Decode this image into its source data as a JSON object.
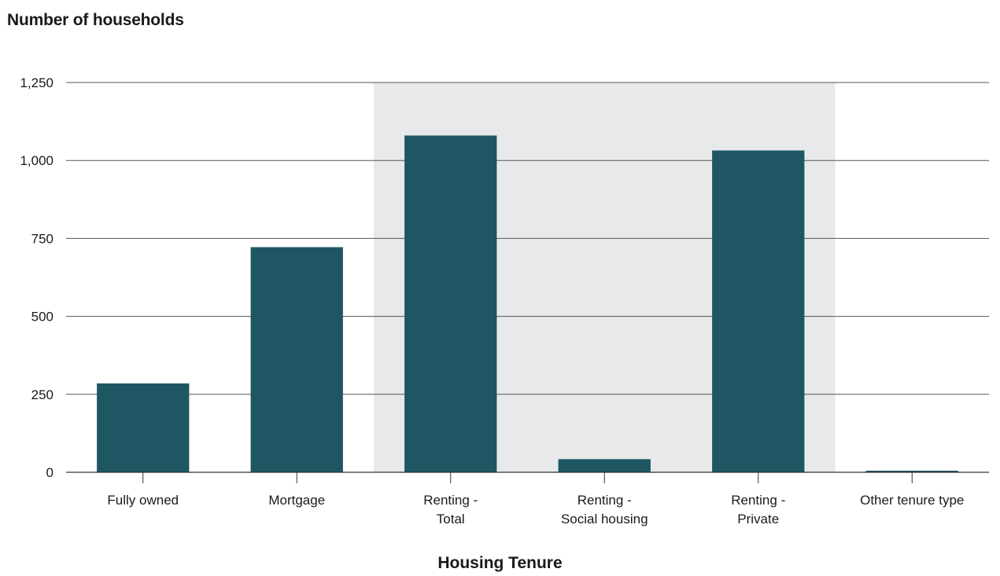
{
  "chart_data": {
    "type": "bar",
    "title": "",
    "ylabel": "Number of households",
    "xlabel": "Housing Tenure",
    "categories": [
      [
        "Fully owned"
      ],
      [
        "Mortgage"
      ],
      [
        "Renting -",
        "Total"
      ],
      [
        "Renting -",
        "Social housing"
      ],
      [
        "Renting -",
        "Private"
      ],
      [
        "Other tenure type"
      ]
    ],
    "values": [
      285,
      722,
      1080,
      42,
      1032,
      5
    ],
    "ylim": [
      0,
      1250
    ],
    "yticks": [
      0,
      250,
      500,
      750,
      1000,
      1250
    ],
    "ytick_labels": [
      "0",
      "250",
      "500",
      "750",
      "1,000",
      "1,250"
    ],
    "highlight_categories": [
      2,
      4
    ],
    "grid": true,
    "legend": "none",
    "colors": {
      "bar": "#1e5763",
      "highlight_band": "#e8e9eb",
      "grid": "#555555",
      "axis": "#333333"
    }
  }
}
